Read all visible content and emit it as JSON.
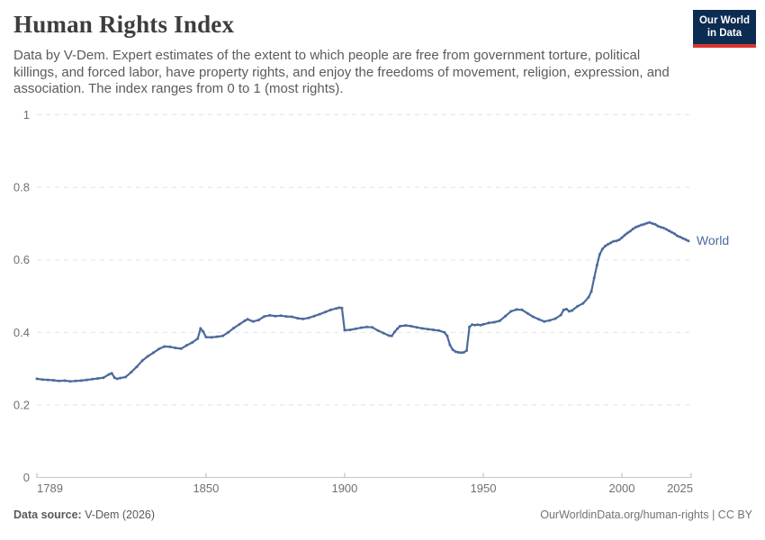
{
  "header": {
    "title": "Human Rights Index",
    "subtitle_lines": [
      "Data by V-Dem. Expert estimates of the extent to which people are free from government torture, political",
      "killings, and forced labor, have property rights, and enjoy the freedoms of movement, religion, expression, and",
      "association. The index ranges from 0 to 1 (most rights)."
    ],
    "logo_line1": "Our World",
    "logo_line2": "in Data"
  },
  "chart_data": {
    "type": "line",
    "title": "Human Rights Index",
    "xlabel": "",
    "ylabel": "",
    "x_range": [
      1789,
      2025
    ],
    "y_range": [
      0,
      1
    ],
    "x_ticks": [
      1789,
      1850,
      1900,
      1950,
      2000,
      2025
    ],
    "y_ticks": [
      0,
      0.2,
      0.4,
      0.6,
      0.8,
      1
    ],
    "grid": "dashed horizontal gridlines",
    "legend": "label at end of line",
    "series": [
      {
        "name": "World",
        "color": "#4C6A9D",
        "points": [
          [
            1789,
            0.272
          ],
          [
            1791,
            0.27
          ],
          [
            1793,
            0.269
          ],
          [
            1795,
            0.268
          ],
          [
            1797,
            0.266
          ],
          [
            1799,
            0.267
          ],
          [
            1801,
            0.265
          ],
          [
            1803,
            0.266
          ],
          [
            1805,
            0.267
          ],
          [
            1807,
            0.269
          ],
          [
            1809,
            0.271
          ],
          [
            1811,
            0.273
          ],
          [
            1813,
            0.275
          ],
          [
            1815,
            0.284
          ],
          [
            1816,
            0.287
          ],
          [
            1817,
            0.275
          ],
          [
            1818,
            0.272
          ],
          [
            1819,
            0.274
          ],
          [
            1821,
            0.277
          ],
          [
            1823,
            0.29
          ],
          [
            1825,
            0.305
          ],
          [
            1827,
            0.322
          ],
          [
            1829,
            0.334
          ],
          [
            1831,
            0.344
          ],
          [
            1833,
            0.354
          ],
          [
            1835,
            0.361
          ],
          [
            1837,
            0.36
          ],
          [
            1839,
            0.357
          ],
          [
            1841,
            0.355
          ],
          [
            1843,
            0.364
          ],
          [
            1845,
            0.372
          ],
          [
            1847,
            0.383
          ],
          [
            1848,
            0.411
          ],
          [
            1849,
            0.402
          ],
          [
            1850,
            0.387
          ],
          [
            1852,
            0.386
          ],
          [
            1854,
            0.388
          ],
          [
            1856,
            0.39
          ],
          [
            1858,
            0.4
          ],
          [
            1860,
            0.412
          ],
          [
            1862,
            0.422
          ],
          [
            1864,
            0.432
          ],
          [
            1865,
            0.436
          ],
          [
            1867,
            0.43
          ],
          [
            1869,
            0.434
          ],
          [
            1871,
            0.444
          ],
          [
            1873,
            0.447
          ],
          [
            1875,
            0.445
          ],
          [
            1877,
            0.446
          ],
          [
            1879,
            0.444
          ],
          [
            1881,
            0.443
          ],
          [
            1883,
            0.439
          ],
          [
            1885,
            0.437
          ],
          [
            1887,
            0.44
          ],
          [
            1889,
            0.445
          ],
          [
            1891,
            0.45
          ],
          [
            1893,
            0.456
          ],
          [
            1895,
            0.462
          ],
          [
            1897,
            0.466
          ],
          [
            1898,
            0.468
          ],
          [
            1899,
            0.467
          ],
          [
            1900,
            0.406
          ],
          [
            1902,
            0.407
          ],
          [
            1904,
            0.41
          ],
          [
            1906,
            0.413
          ],
          [
            1908,
            0.415
          ],
          [
            1910,
            0.414
          ],
          [
            1912,
            0.405
          ],
          [
            1914,
            0.398
          ],
          [
            1916,
            0.391
          ],
          [
            1917,
            0.39
          ],
          [
            1918,
            0.401
          ],
          [
            1919,
            0.41
          ],
          [
            1920,
            0.417
          ],
          [
            1922,
            0.419
          ],
          [
            1924,
            0.417
          ],
          [
            1926,
            0.414
          ],
          [
            1928,
            0.411
          ],
          [
            1930,
            0.409
          ],
          [
            1932,
            0.407
          ],
          [
            1934,
            0.405
          ],
          [
            1936,
            0.4
          ],
          [
            1937,
            0.39
          ],
          [
            1938,
            0.365
          ],
          [
            1939,
            0.352
          ],
          [
            1940,
            0.347
          ],
          [
            1941,
            0.345
          ],
          [
            1942,
            0.344
          ],
          [
            1943,
            0.345
          ],
          [
            1944,
            0.35
          ],
          [
            1945,
            0.415
          ],
          [
            1946,
            0.421
          ],
          [
            1947,
            0.42
          ],
          [
            1948,
            0.421
          ],
          [
            1949,
            0.42
          ],
          [
            1950,
            0.422
          ],
          [
            1952,
            0.426
          ],
          [
            1954,
            0.428
          ],
          [
            1956,
            0.432
          ],
          [
            1958,
            0.445
          ],
          [
            1960,
            0.458
          ],
          [
            1962,
            0.463
          ],
          [
            1964,
            0.462
          ],
          [
            1966,
            0.452
          ],
          [
            1968,
            0.443
          ],
          [
            1970,
            0.436
          ],
          [
            1972,
            0.43
          ],
          [
            1974,
            0.433
          ],
          [
            1976,
            0.438
          ],
          [
            1978,
            0.448
          ],
          [
            1979,
            0.462
          ],
          [
            1980,
            0.464
          ],
          [
            1981,
            0.458
          ],
          [
            1982,
            0.46
          ],
          [
            1984,
            0.472
          ],
          [
            1986,
            0.48
          ],
          [
            1988,
            0.497
          ],
          [
            1989,
            0.513
          ],
          [
            1990,
            0.55
          ],
          [
            1991,
            0.585
          ],
          [
            1992,
            0.615
          ],
          [
            1993,
            0.63
          ],
          [
            1994,
            0.638
          ],
          [
            1995,
            0.643
          ],
          [
            1996,
            0.647
          ],
          [
            1997,
            0.651
          ],
          [
            1998,
            0.652
          ],
          [
            1999,
            0.655
          ],
          [
            2000,
            0.661
          ],
          [
            2001,
            0.668
          ],
          [
            2002,
            0.674
          ],
          [
            2003,
            0.679
          ],
          [
            2004,
            0.685
          ],
          [
            2005,
            0.69
          ],
          [
            2006,
            0.693
          ],
          [
            2007,
            0.696
          ],
          [
            2008,
            0.698
          ],
          [
            2009,
            0.701
          ],
          [
            2010,
            0.703
          ],
          [
            2011,
            0.7
          ],
          [
            2012,
            0.698
          ],
          [
            2013,
            0.693
          ],
          [
            2014,
            0.69
          ],
          [
            2015,
            0.688
          ],
          [
            2016,
            0.684
          ],
          [
            2017,
            0.68
          ],
          [
            2018,
            0.676
          ],
          [
            2019,
            0.672
          ],
          [
            2020,
            0.666
          ],
          [
            2021,
            0.663
          ],
          [
            2022,
            0.659
          ],
          [
            2023,
            0.656
          ],
          [
            2024,
            0.652
          ]
        ]
      }
    ]
  },
  "footer": {
    "source_label": "Data source:",
    "source_value": " V-Dem (2026)",
    "credit": "OurWorldinData.org/human-rights | CC BY"
  },
  "colors": {
    "series": "#4C6A9D",
    "gridline": "#e3e3e3",
    "axis_line": "#c6c6c6",
    "tick": "#b5b5b5",
    "tick_label": "#707070",
    "title": "#3d3d3d",
    "subtitle": "#5b5b5b",
    "logo_bg": "#0c2c52",
    "logo_bar": "#d8352f"
  }
}
